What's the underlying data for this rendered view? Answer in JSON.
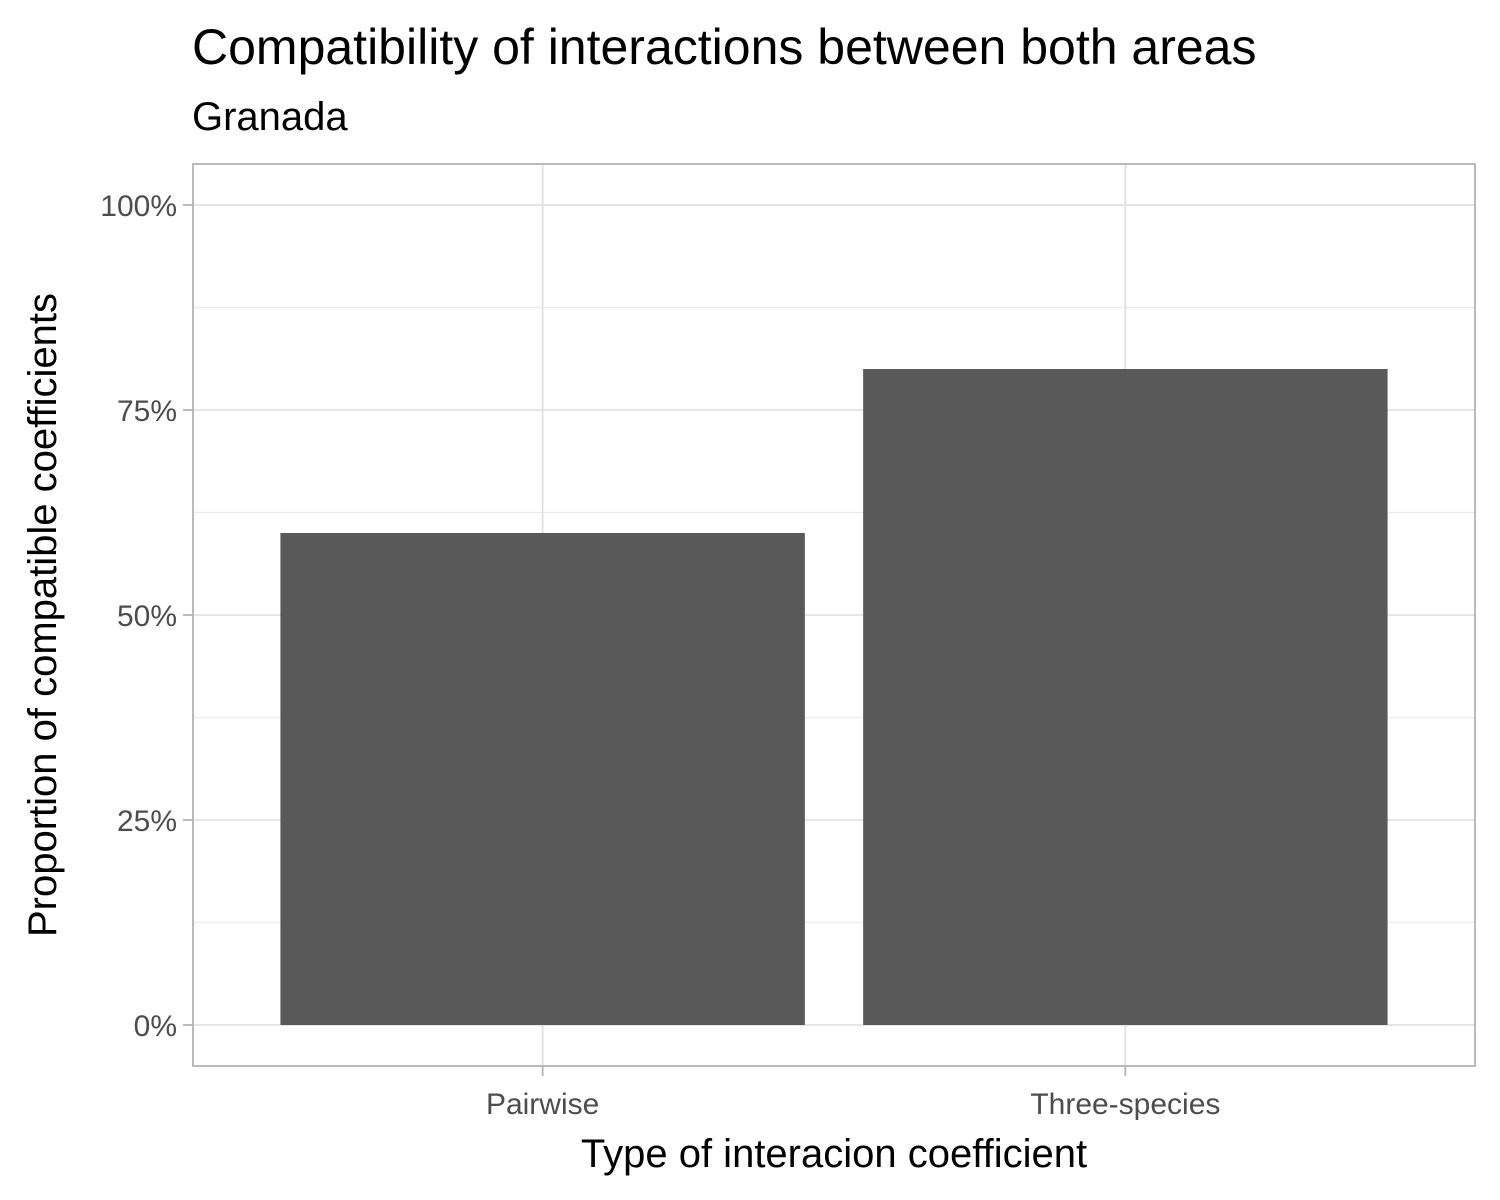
{
  "chart_data": {
    "type": "bar",
    "title": "Compatibility of interactions between both areas",
    "subtitle": "Granada",
    "xlabel": "Type of interacion coefficient",
    "ylabel": "Proportion of compatible coefficients",
    "categories": [
      "Pairwise",
      "Three-species"
    ],
    "values": [
      0.6,
      0.8
    ],
    "ylim": [
      -0.05,
      1.05
    ],
    "y_ticks": [
      0,
      0.25,
      0.5,
      0.75,
      1.0
    ],
    "y_tick_labels": [
      "0%",
      "25%",
      "50%",
      "75%",
      "100%"
    ],
    "y_minor_ticks": [
      0.125,
      0.375,
      0.625,
      0.875
    ],
    "grid": true,
    "bar_color": "#595959"
  }
}
